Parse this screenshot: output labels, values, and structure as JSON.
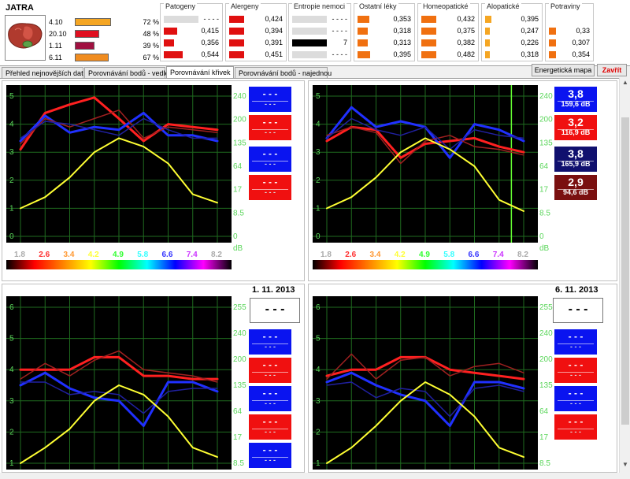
{
  "organ": {
    "title": "JATRA",
    "rows": [
      {
        "date": "4.10",
        "percent": "72 %",
        "color": "#f5a623",
        "level": 0.72
      },
      {
        "date": "20.10",
        "percent": "48 %",
        "color": "#e01020",
        "level": 0.48
      },
      {
        "date": "1.11",
        "percent": "39 %",
        "color": "#a01040",
        "level": 0.39
      },
      {
        "date": "6.11",
        "percent": "67 %",
        "color": "#f08c20",
        "level": 0.67
      }
    ]
  },
  "groups": [
    {
      "title": "Patogeny",
      "rows": [
        {
          "value": "- - - -",
          "color": "#dcdcdc",
          "level": 1.0
        },
        {
          "value": "0,415",
          "color": "#e01010",
          "level": 0.38
        },
        {
          "value": "0,356",
          "color": "#e01010",
          "level": 0.3
        },
        {
          "value": "0,544",
          "color": "#e01010",
          "level": 0.55
        }
      ]
    },
    {
      "title": "Alergeny",
      "rows": [
        {
          "value": "0,424",
          "color": "#e01010",
          "level": 0.45
        },
        {
          "value": "0,394",
          "color": "#e01010",
          "level": 0.45
        },
        {
          "value": "0,391",
          "color": "#e01010",
          "level": 0.45
        },
        {
          "value": "0,451",
          "color": "#e01010",
          "level": 0.45
        }
      ]
    },
    {
      "title": "Entropie nemoci",
      "rows": [
        {
          "value": "- - - -",
          "color": "#dcdcdc",
          "level": 1.0
        },
        {
          "value": "- - - -",
          "color": "#dcdcdc",
          "level": 1.0
        },
        {
          "value": "7",
          "color": "#000000",
          "level": 1.0
        },
        {
          "value": "- - - -",
          "color": "#dcdcdc",
          "level": 1.0
        }
      ]
    },
    {
      "title": "Ostatní léky",
      "rows": [
        {
          "value": "0,353",
          "color": "#f07010",
          "level": 0.35
        },
        {
          "value": "0,318",
          "color": "#f07010",
          "level": 0.3
        },
        {
          "value": "0,313",
          "color": "#f07010",
          "level": 0.3
        },
        {
          "value": "0,395",
          "color": "#f07010",
          "level": 0.38
        }
      ]
    },
    {
      "title": "Homeopatické",
      "rows": [
        {
          "value": "0,432",
          "color": "#f07010",
          "level": 0.45
        },
        {
          "value": "0,375",
          "color": "#f07010",
          "level": 0.45
        },
        {
          "value": "0,382",
          "color": "#f07010",
          "level": 0.45
        },
        {
          "value": "0,482",
          "color": "#f07010",
          "level": 0.45
        }
      ]
    },
    {
      "title": "Alopatické",
      "rows": [
        {
          "value": "0,395",
          "color": "#f5a623",
          "level": 0.2
        },
        {
          "value": "0,247",
          "color": "#f5a623",
          "level": 0.15
        },
        {
          "value": "0,226",
          "color": "#f5a623",
          "level": 0.15
        },
        {
          "value": "0,318",
          "color": "#f5a623",
          "level": 0.15
        }
      ]
    },
    {
      "title": "Potraviny",
      "rows": [
        {
          "value": "",
          "color": "#ffffff",
          "level": 0
        },
        {
          "value": "0,33",
          "color": "#f07010",
          "level": 0.35
        },
        {
          "value": "0,307",
          "color": "#f07010",
          "level": 0.35
        },
        {
          "value": "0,354",
          "color": "#f07010",
          "level": 0.35
        }
      ]
    }
  ],
  "tabs": [
    {
      "label": "Přehled nejnovějších dat",
      "active": false
    },
    {
      "label": "Porovnávání bodů - vedle",
      "active": false
    },
    {
      "label": "Porovnávání křivek",
      "active": true
    },
    {
      "label": "Porovnávání bodů - najednou",
      "active": false
    }
  ],
  "buttons": {
    "energy_map": "Energetická mapa",
    "close": "Zavřít"
  },
  "spectrum_labels": [
    {
      "text": "1.8",
      "color": "#aaaaaa"
    },
    {
      "text": "2.6",
      "color": "#ff3030"
    },
    {
      "text": "3.4",
      "color": "#ff9933"
    },
    {
      "text": "4.2",
      "color": "#ffff33"
    },
    {
      "text": "4.9",
      "color": "#33ff33"
    },
    {
      "text": "5.8",
      "color": "#33ffff"
    },
    {
      "text": "6.6",
      "color": "#3333ff"
    },
    {
      "text": "7.4",
      "color": "#cc33ff"
    },
    {
      "text": "8.2",
      "color": "#aaaaaa"
    }
  ],
  "charts": [
    {
      "left_axis": [
        "5",
        "4",
        "3",
        "2",
        "1",
        "0"
      ],
      "right_axis": [
        "240",
        "200",
        "135",
        "64",
        "17",
        "8.5",
        "0"
      ],
      "right_unit": "dB",
      "show_spectrum": true,
      "date": "",
      "cursor_x": null,
      "boxes": [
        {
          "big": "- - -",
          "small": "- - -",
          "color": "#0a14f0",
          "dash": true
        },
        {
          "big": "- - -",
          "small": "- - -",
          "color": "#f01010",
          "dash": true
        },
        {
          "big": "- - -",
          "small": "- - -",
          "color": "#0a14f0",
          "dash": true
        },
        {
          "big": "- - -",
          "small": "- - -",
          "color": "#f01010",
          "dash": true
        }
      ],
      "lines": [
        {
          "color": "#ff2020",
          "width": 3,
          "y": [
            3.1,
            4.4,
            4.7,
            4.95,
            4.2,
            3.4,
            4.0,
            3.9,
            3.8
          ]
        },
        {
          "color": "#2030ff",
          "width": 3,
          "y": [
            3.4,
            4.3,
            3.7,
            3.9,
            3.8,
            4.4,
            3.6,
            3.6,
            3.4
          ]
        },
        {
          "color": "#a02020",
          "width": 1.5,
          "y": [
            3.3,
            4.2,
            3.9,
            4.2,
            4.5,
            3.5,
            3.9,
            3.8,
            3.7
          ]
        },
        {
          "color": "#2020a0",
          "width": 1.5,
          "y": [
            3.5,
            4.1,
            4.0,
            3.8,
            3.6,
            4.2,
            3.8,
            3.5,
            3.5
          ]
        },
        {
          "color": "#ffff33",
          "width": 2,
          "y": [
            1.0,
            1.4,
            2.1,
            3.0,
            3.5,
            3.2,
            2.6,
            1.5,
            1.2
          ]
        }
      ]
    },
    {
      "left_axis": [
        "5",
        "4",
        "3",
        "2",
        "1",
        "0"
      ],
      "right_axis": [
        "240",
        "200",
        "135",
        "64",
        "17",
        "8.5",
        "0"
      ],
      "right_unit": "dB",
      "show_spectrum": true,
      "date": "",
      "cursor_x": 7.5,
      "boxes": [
        {
          "big": "3,8",
          "small": "159,6 dB",
          "color": "#0a14f0",
          "dash": false
        },
        {
          "big": "3,2",
          "small": "116,9 dB",
          "color": "#f01010",
          "dash": false
        },
        {
          "big": "3,8",
          "small": "165,9 dB",
          "color": "#10106e",
          "dash": false
        },
        {
          "big": "2,9",
          "small": "94,6 dB",
          "color": "#7a1010",
          "dash": false
        }
      ],
      "lines": [
        {
          "color": "#ff2020",
          "width": 3,
          "y": [
            3.4,
            3.9,
            3.8,
            2.8,
            3.3,
            3.4,
            3.5,
            3.2,
            3.0
          ]
        },
        {
          "color": "#2030ff",
          "width": 3,
          "y": [
            3.5,
            4.6,
            3.9,
            4.1,
            3.9,
            2.8,
            4.0,
            3.8,
            3.4
          ]
        },
        {
          "color": "#a02020",
          "width": 1.5,
          "y": [
            3.6,
            3.9,
            3.7,
            2.6,
            3.4,
            3.6,
            3.2,
            3.1,
            2.9
          ]
        },
        {
          "color": "#2020a0",
          "width": 1.5,
          "y": [
            3.5,
            4.2,
            3.8,
            3.6,
            3.9,
            3.1,
            3.8,
            3.6,
            3.5
          ]
        },
        {
          "color": "#ffff33",
          "width": 2,
          "y": [
            1.0,
            1.4,
            2.1,
            3.0,
            3.5,
            3.1,
            2.5,
            1.3,
            0.9
          ]
        }
      ]
    },
    {
      "left_axis": [
        "6",
        "5",
        "4",
        "3",
        "2",
        "1"
      ],
      "right_axis": [
        "255",
        "240",
        "200",
        "135",
        "64",
        "17",
        "8.5"
      ],
      "right_unit": "",
      "show_spectrum": false,
      "date": "1. 11. 2013",
      "cursor_x": null,
      "boxes": [
        {
          "big": "- - -",
          "small": "- - -",
          "color": "#0a14f0",
          "dash": true
        },
        {
          "big": "- - -",
          "small": "- - -",
          "color": "#f01010",
          "dash": true
        },
        {
          "big": "- - -",
          "small": "- - -",
          "color": "#0a14f0",
          "dash": true
        },
        {
          "big": "- - -",
          "small": "- - -",
          "color": "#f01010",
          "dash": true
        },
        {
          "big": "- - -",
          "small": "- - -",
          "color": "#0a14f0",
          "dash": true
        }
      ],
      "lines": [
        {
          "color": "#ff2020",
          "width": 3,
          "y": [
            4.0,
            4.0,
            4.0,
            4.4,
            4.4,
            3.8,
            3.8,
            3.7,
            3.7
          ]
        },
        {
          "color": "#2030ff",
          "width": 3,
          "y": [
            3.5,
            3.9,
            3.4,
            3.1,
            3.0,
            2.2,
            3.6,
            3.6,
            3.3
          ]
        },
        {
          "color": "#a02020",
          "width": 1.5,
          "y": [
            3.7,
            4.2,
            3.8,
            4.3,
            4.6,
            4.0,
            3.9,
            3.8,
            3.6
          ]
        },
        {
          "color": "#2020a0",
          "width": 1.5,
          "y": [
            3.6,
            3.6,
            3.2,
            3.3,
            3.2,
            2.6,
            3.3,
            3.4,
            3.4
          ]
        },
        {
          "color": "#ffff33",
          "width": 2,
          "y": [
            1.0,
            1.5,
            2.1,
            3.0,
            3.5,
            3.2,
            2.5,
            1.5,
            1.2
          ]
        }
      ]
    },
    {
      "left_axis": [
        "6",
        "5",
        "4",
        "3",
        "2",
        "1"
      ],
      "right_axis": [
        "255",
        "240",
        "200",
        "135",
        "64",
        "17",
        "8.5"
      ],
      "right_unit": "",
      "show_spectrum": false,
      "date": "6. 11. 2013",
      "cursor_x": null,
      "boxes": [
        {
          "big": "- - -",
          "small": "- - -",
          "color": "#0a14f0",
          "dash": true
        },
        {
          "big": "- - -",
          "small": "- - -",
          "color": "#f01010",
          "dash": true
        },
        {
          "big": "- - -",
          "small": "- - -",
          "color": "#0a14f0",
          "dash": true
        },
        {
          "big": "- - -",
          "small": "- - -",
          "color": "#f01010",
          "dash": true
        }
      ],
      "lines": [
        {
          "color": "#ff2020",
          "width": 3,
          "y": [
            3.8,
            4.0,
            4.0,
            4.4,
            4.4,
            4.0,
            3.9,
            3.8,
            3.7
          ]
        },
        {
          "color": "#2030ff",
          "width": 3,
          "y": [
            3.6,
            3.9,
            3.5,
            3.2,
            3.0,
            2.2,
            3.6,
            3.6,
            3.4
          ]
        },
        {
          "color": "#a02020",
          "width": 1.5,
          "y": [
            3.7,
            4.5,
            3.7,
            4.3,
            4.4,
            3.8,
            4.1,
            4.2,
            3.9
          ]
        },
        {
          "color": "#2020a0",
          "width": 1.5,
          "y": [
            3.5,
            3.6,
            3.1,
            3.4,
            3.3,
            2.5,
            3.4,
            3.5,
            3.3
          ]
        },
        {
          "color": "#ffff33",
          "width": 2,
          "y": [
            1.0,
            1.5,
            2.2,
            3.0,
            3.6,
            3.2,
            2.5,
            1.5,
            1.2
          ]
        }
      ]
    }
  ]
}
